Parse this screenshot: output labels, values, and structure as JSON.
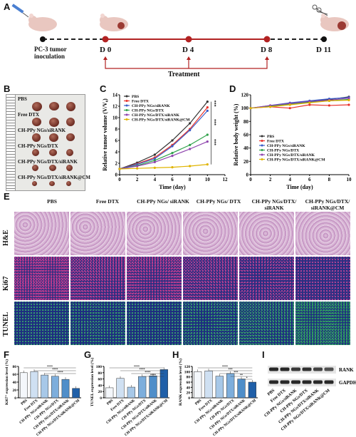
{
  "panels": {
    "a": "A",
    "b": "B",
    "c": "C",
    "d": "D",
    "e": "E",
    "f": "F",
    "g": "G",
    "h": "H",
    "i": "I"
  },
  "timeline": {
    "inoculation": "PC-3 tumor inoculation",
    "days": [
      "D 0",
      "D 4",
      "D 8",
      "D 11"
    ],
    "treatment": "Treatment"
  },
  "tumor_photo": {
    "groups": [
      "PBS",
      "Free DTX",
      "CH-PPy NGs/siRANK",
      "CH-PPy NGs/DTX",
      "CH-PPy NGs/DTX/siRANK",
      "CH-PPy NGs/DTX/siRANK@CM"
    ]
  },
  "legend_groups": [
    "PBS",
    "Free DTX",
    "CH-PPy NGs/siRANK",
    "CH-PPy NGs/DTX",
    "CH-PPy NGs/DTX/siRANK",
    "CH-PPy NGs/DTX/siRANK@CM"
  ],
  "colors": {
    "PBS": "#333333",
    "Free DTX": "#e8312a",
    "siRANK": "#3a5cc7",
    "DTX": "#2fa14a",
    "DTX_siRANK": "#8e44ad",
    "CM": "#e0b400"
  },
  "chart_data": [
    {
      "type": "line",
      "id": "C",
      "xlabel": "Time (day)",
      "ylabel": "Relative tumor volume (V/V₀)",
      "xlim": [
        0,
        12
      ],
      "ylim": [
        0,
        14
      ],
      "xticks": [
        "0",
        "2",
        "4",
        "6",
        "8",
        "10",
        "12"
      ],
      "yticks": [
        "0",
        "2",
        "4",
        "6",
        "8",
        "10",
        "12",
        "14"
      ],
      "x": [
        0,
        2,
        4,
        6,
        8,
        10
      ],
      "series": [
        {
          "name": "PBS",
          "values": [
            1,
            2.1,
            3.5,
            6.0,
            9.0,
            12.8
          ]
        },
        {
          "name": "Free DTX",
          "values": [
            1,
            1.9,
            3.0,
            5.2,
            8.0,
            11.8
          ]
        },
        {
          "name": "CH-PPy NGs/siRANK",
          "values": [
            1,
            1.8,
            2.8,
            5.0,
            7.8,
            11.2
          ]
        },
        {
          "name": "CH-PPy NGs/DTX",
          "values": [
            1,
            1.6,
            2.5,
            3.8,
            5.2,
            7.0
          ]
        },
        {
          "name": "CH-PPy NGs/DTX/siRANK",
          "values": [
            1,
            1.5,
            2.2,
            3.3,
            4.5,
            5.8
          ]
        },
        {
          "name": "CH-PPy NGs/DTX/siRANK@CM",
          "values": [
            1,
            1.1,
            1.2,
            1.3,
            1.5,
            1.8
          ]
        }
      ],
      "annotations": [
        "***",
        "***",
        "***"
      ]
    },
    {
      "type": "line",
      "id": "D",
      "xlabel": "Time (day)",
      "ylabel": "Relative body weight (%)",
      "xlim": [
        0,
        10
      ],
      "ylim": [
        0,
        120
      ],
      "xticks": [
        "0",
        "2",
        "4",
        "6",
        "8",
        "10"
      ],
      "yticks": [
        "0",
        "20",
        "40",
        "60",
        "80",
        "100",
        "120"
      ],
      "x": [
        0,
        2,
        4,
        6,
        8,
        10
      ],
      "series": [
        {
          "name": "PBS",
          "values": [
            100,
            103,
            107,
            110,
            113,
            117
          ]
        },
        {
          "name": "Free DTX",
          "values": [
            100,
            102,
            100,
            105,
            104,
            105
          ]
        },
        {
          "name": "CH-PPy NGs/siRANK",
          "values": [
            100,
            104,
            108,
            111,
            114,
            116
          ]
        },
        {
          "name": "CH-PPy NGs/DTX",
          "values": [
            100,
            103,
            106,
            109,
            111,
            113
          ]
        },
        {
          "name": "CH-PPy NGs/DTX/siRANK",
          "values": [
            100,
            104,
            107,
            110,
            112,
            115
          ]
        },
        {
          "name": "CH-PPy NGs/DTX/siRANK@CM",
          "values": [
            100,
            102,
            105,
            108,
            111,
            112
          ]
        }
      ]
    },
    {
      "type": "bar",
      "id": "F",
      "ylabel": "Ki67⁺ expression level (%)",
      "ylim": [
        0,
        80
      ],
      "yticks": [
        "0",
        "20",
        "40",
        "60",
        "80"
      ],
      "categories": [
        "PBS",
        "Free DTX",
        "CH-PPy NGs/siRANK",
        "CH-PPy NGs/DTX",
        "CH-PPy NGs/DTX/siRANK",
        "CH-PPy NGs/DTX/siRANK@CM"
      ],
      "values": [
        64,
        67,
        58,
        55,
        47,
        24
      ],
      "annotations": [
        "****",
        "****",
        "****"
      ]
    },
    {
      "type": "bar",
      "id": "G",
      "ylabel": "TUNEL expression level (%)",
      "ylim": [
        0,
        100
      ],
      "yticks": [
        "0",
        "20",
        "40",
        "60",
        "80",
        "100"
      ],
      "categories": [
        "PBS",
        "Free DTX",
        "CH-PPy NGs/siRANK",
        "CH-PPy NGs/DTX",
        "CH-PPy NGs/DTX/siRANK",
        "CH-PPy NGs/DTX/siRANK@CM"
      ],
      "values": [
        32,
        62,
        34,
        68,
        70,
        90
      ],
      "annotations": [
        "****",
        "****",
        "****",
        "****"
      ]
    },
    {
      "type": "bar",
      "id": "H",
      "ylabel": "RANK expression level (%)",
      "ylim": [
        0,
        120
      ],
      "yticks": [
        "0",
        "20",
        "40",
        "60",
        "80",
        "100",
        "120"
      ],
      "categories": [
        "PBS",
        "Free DTX",
        "CH-PPy NGs/siRANK",
        "CH-PPy NGs/DTX",
        "CH-PPy NGs/DTX/siRANK",
        "CH-PPy NGs/DTX/siRANK@CM"
      ],
      "values": [
        100,
        103,
        83,
        93,
        72,
        60
      ],
      "annotations": [
        "****",
        "***",
        "***",
        "**",
        "*"
      ]
    }
  ],
  "panel_e": {
    "columns": [
      "PBS",
      "Free DTX",
      "CH-PPy NGs/ siRANK",
      "CH-PPy NGs/ DTX",
      "CH-PPy NGs/DTX/ siRANK",
      "CH-PPy NGs/DTX/ siRANK@CM"
    ],
    "rows": [
      "H&E",
      "Ki67",
      "TUNEL"
    ]
  },
  "western": {
    "bands": [
      "RANK",
      "GAPDH"
    ],
    "lanes": [
      "PBS",
      "Free DTX",
      "CH-PPy NGs/siRANK",
      "CH-PPy NGs/DTX",
      "CH-PPy NGs/DTX/siRANK",
      "CH-PPy NGs/DTX/siRANK@CM"
    ],
    "rank_intensity": [
      1.0,
      1.0,
      0.8,
      0.9,
      0.7,
      0.55
    ]
  }
}
